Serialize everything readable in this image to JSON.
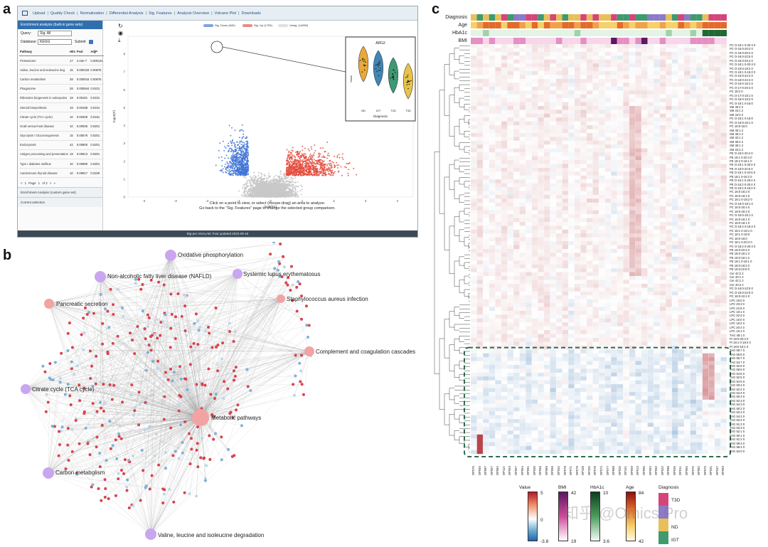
{
  "panels": {
    "a": "a",
    "b": "b",
    "c": "c"
  },
  "panel_a": {
    "nav": [
      "Upload",
      "Quality Check",
      "Normalization",
      "Differential Analysis",
      "Sig. Features",
      "Analysis Overview",
      "Volcano Plot",
      "Downloads"
    ],
    "side_title": "Enrichment analysis (built-in gene sets)",
    "query_label": "Query:",
    "query_value": "Sig. All",
    "database_label": "Database:",
    "database_value": "KEGG",
    "submit_label": "Submit",
    "table_headers": [
      "Pathway",
      "Hits",
      "Pval",
      "AdjP"
    ],
    "table_rows": [
      [
        "Proteasome",
        "17",
        "4.44e-7",
        "0.000141"
      ],
      [
        "Valine, leucine and isoleucine deg.",
        "15",
        "0.000433",
        "0.00676"
      ],
      [
        "Carbon metabolism",
        "28",
        "0.000616",
        "0.00676"
      ],
      [
        "Phagosome",
        "28",
        "0.000844",
        "0.0101"
      ],
      [
        "Ribosome biogenesis in eukaryotes",
        "19",
        "0.00181",
        "0.0101"
      ],
      [
        "Steroid biosynthesis",
        "19",
        "0.00188",
        "0.0101"
      ],
      [
        "Citrate cycle (TCA cycle)",
        "10",
        "0.00409",
        "0.0161"
      ],
      [
        "Graft-versus-host disease",
        "10",
        "0.00935",
        "0.0201"
      ],
      [
        "Glycolysis / Gluconeogenesis",
        "15",
        "0.00576",
        "0.0201"
      ],
      [
        "Endocytosis",
        "42",
        "0.00900",
        "0.0201"
      ],
      [
        "Antigen processing and presentation",
        "19",
        "0.00913",
        "0.0201"
      ],
      [
        "Type I diabetes mellitus",
        "10",
        "0.00980",
        "0.0201"
      ],
      [
        "Autoimmune thyroid disease",
        "10",
        "0.00917",
        "0.0229"
      ]
    ],
    "pager": [
      "<",
      "1",
      "Page",
      "1",
      "of 2",
      ">",
      "»"
    ],
    "side_foot_1": "Enrichment Analysis (custom gene set)",
    "side_foot_2": "Current selection",
    "legend": [
      "Sig. Down (840)",
      "Sig. Up (1705)",
      "Unsig. (14659)"
    ],
    "y_label": "-log10(P)",
    "x_label": "log2(FC)",
    "y_ticks": [
      "0",
      "1",
      "2",
      "3",
      "4",
      "5",
      "6",
      "7",
      "8"
    ],
    "x_ticks": [
      "-4",
      "-3",
      "-2",
      "-1",
      "0",
      "1",
      "2",
      "3",
      "4"
    ],
    "message_line1": "Click on a point to view, or select (mouse-drag) an area to analyze.",
    "message_line2": "Go back to the \"Sig. Features\" page to change the selected group comparison.",
    "inset_title": "ARG2",
    "inset_xlabel": "Diagnosis",
    "inset_ylabel": "Value",
    "inset_categories": [
      "ND",
      "IGT",
      "T2D",
      "T3D"
    ],
    "bottom_text": "Big-per ANALAB: Post updated 2023-09-18",
    "colors": {
      "down": "#3f74d6",
      "up": "#e24a3b",
      "unsig": "#c8c8c8"
    }
  },
  "panel_b": {
    "nodes": [
      {
        "label": "Oxidative phosphorylation",
        "color": "#c9a6f0"
      },
      {
        "label": "Non-alcoholic fatty liver disease (NAFLD)",
        "color": "#c9a6f0"
      },
      {
        "label": "Systemic lupus erythematosus",
        "color": "#c9a6f0"
      },
      {
        "label": "Pancreatic secretion",
        "color": "#f2a3a3"
      },
      {
        "label": "Staphylococcus aureus infection",
        "color": "#f2a3a3"
      },
      {
        "label": "Complement and coagulation cascades",
        "color": "#f2a3a3"
      },
      {
        "label": "Citrate cycle (TCA cycle)",
        "color": "#c9a6f0"
      },
      {
        "label": "Metabolic pathways",
        "color": "#f2a3a3"
      },
      {
        "label": "Carbon metabolism",
        "color": "#c9a6f0"
      },
      {
        "label": "Valine, leucine and isoleucine degradation",
        "color": "#c9a6f0"
      }
    ]
  },
  "panel_c": {
    "annotations": [
      "Diagnosis",
      "Age",
      "HbA1c",
      "BMI"
    ],
    "row_labels": [
      "PC O-18:1 0-20:4 0",
      "PC O-16:0-20:4 0",
      "PC O-18:0-20:4 0",
      "PC O-16:0-22:5 0",
      "PC O-16:0-20:4 0",
      "PC O-18:1 0-20:4 0",
      "PC O-16:0-18:2 0",
      "PC O-18:1 0-18:2 0",
      "PC O-16:0-22:4 0",
      "PC O-18:0-22:4 0",
      "PC O-16:0-18:1 0",
      "PC O-17:0-20:4 0",
      "PC 18:2 0",
      "PC O-17:0-18:1 0",
      "PC O-16:0-18:2 0",
      "PC O-18:1 0-16:0",
      "SM 40:2 2",
      "SM 34:1 2",
      "SM 34:0 2",
      "PC O-18:1 0-16:0",
      "PC O-16:0-16:1 0",
      "PC 16:0-16:0",
      "SM 40:1 2",
      "SM 38:1 2",
      "SM 32:1 2",
      "SM 36:2 2",
      "SM 36:1 2",
      "SM 34:2 2",
      "PE O-18:2-20:4 0",
      "PE 18:1 0-20:4 0",
      "PE 18:2 0-18:1 0",
      "PE O-18:1 0-20:4 0",
      "PE O-16:0-22:6 0",
      "PE O-18:1 0-22:6 0",
      "PE 18:1 0-18:2 0",
      "PE O-16:1 0-20:4 0",
      "PE O-16:2 0-20:4 0",
      "PE O-18:2 0-18:2 0",
      "PC 16:0-18:2 0",
      "PC 18:0-18:2 0",
      "PC 18:1 0-18:2 0",
      "PC O-18:0-18:1 0",
      "PC 16:0-20:4 0",
      "PC 18:0-20:4 0",
      "PC O-16:0-18:1 0",
      "PC 16:0-18:1 0",
      "PC 18:0-18:1 0",
      "PC O-18:2 0-18:2 0",
      "PC 18:1 0-18:1 0",
      "PC 18:1 0-16:0",
      "PC 18:0-16:0",
      "PC 18:1 0-20:4 0",
      "PC O-18:2 0-20:4 0",
      "PE 16:0-20:4 0",
      "PE 18:0-18:1 0",
      "PE 16:0-18:1 0",
      "PE 18:1 0-18:1 0",
      "PE 18:0-18:2 0",
      "PE 16:0-22:6 0",
      "Cer 42:2 2",
      "Cer 40:1 2",
      "Cer 42:1 2",
      "Cer 40:2 2",
      "PC O-16:0-22:5 0",
      "PC O-18:0-22:5 0",
      "PC 16:0-22:4 0",
      "LPC 18:0 0",
      "LPC 20:3 0",
      "LPC 22:6 0",
      "LPC 18:1 0",
      "LPC 20:4 0",
      "LPC 16:0 0",
      "LPC 18:2 0",
      "LPC 20:4 0",
      "LPC 16:1 0",
      "TAG 48:1 0",
      "PI 18:0-20:4 0",
      "PI 18:1 0-18:2 0",
      "PI 18:0-18:1 0",
      "TAG 58:7 0",
      "TAG 56:8 0",
      "TAG 56:7 0",
      "TAG 54:7 0",
      "TAG 52:6 0",
      "TAG 56:6 0",
      "TAG 54:6 0",
      "TAG 52:5 0",
      "TAG 54:5 0",
      "TAG 50:4 0",
      "TAG 52:4 0",
      "TAG 54:4 0",
      "TAG 50:3 0",
      "TAG 52:3 0",
      "TAG 54:3 0",
      "TAG 50:2 0",
      "TAG 52:2 0",
      "TAG 54:2 0",
      "TAG 53:4 0",
      "TAG 51:3 0",
      "TAG 53:3 0",
      "TAG 52:1 0",
      "TAG 50:1 0",
      "TAG 51:2 0",
      "TAG 58:3 0",
      "TAG 58:4 0",
      "TAG 54:0 0"
    ],
    "col_labels": [
      "DP076",
      "DP065",
      "DP087",
      "DP057",
      "DP084",
      "DP112",
      "DP053",
      "DP067",
      "DP064",
      "DP091",
      "DP035",
      "DP058",
      "DP089",
      "DP056",
      "DP034",
      "DP078",
      "DP071",
      "DP079",
      "DP108",
      "DP105",
      "DP078",
      "DP074",
      "DP077",
      "DP088",
      "DP026",
      "DP101",
      "DP059",
      "DP013",
      "DP095",
      "DP092",
      "DP050",
      "DP042",
      "DP098",
      "DP036",
      "DP011",
      "DP065",
      "DP070",
      "DP082",
      "DP075",
      "DP031",
      "DP037",
      "DP093"
    ],
    "legend": {
      "value_title": "Value",
      "value_max": "5",
      "value_mid": "0",
      "value_min": "-3.8",
      "bmi_title": "BMI",
      "bmi_max": "42",
      "bmi_min": "19",
      "hba1c_title": "HbA1c",
      "hba1c_max": "10",
      "hba1c_min": "3.6",
      "age_title": "Age",
      "age_max": "84",
      "age_min": "42",
      "diagnosis_title": "Diagnosis",
      "diagnosis_items": [
        "T3D",
        "ND",
        "IGT"
      ]
    },
    "diagnosis_colors": {
      "T3D": "#d6457a",
      "T2D": "#8b7bc7",
      "ND": "#e8c05a",
      "IGT": "#3f9a6e"
    },
    "watermark": "知乎 @Omics Pro"
  }
}
